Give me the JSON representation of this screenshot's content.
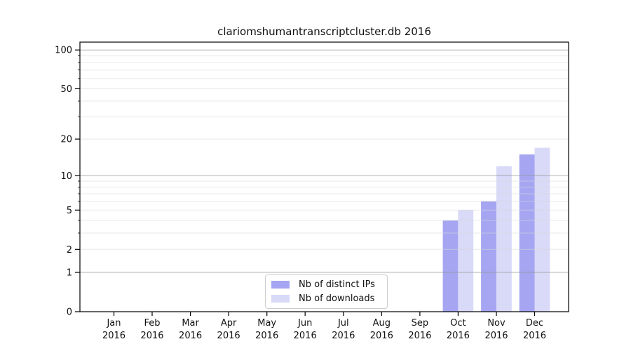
{
  "chart_data": {
    "type": "bar",
    "title": "clariomshumantranscriptcluster.db 2016",
    "categories": [
      "Jan",
      "Feb",
      "Mar",
      "Apr",
      "May",
      "Jun",
      "Jul",
      "Aug",
      "Sep",
      "Oct",
      "Nov",
      "Dec"
    ],
    "category_sublabel": "2016",
    "series": [
      {
        "name": "Nb of distinct IPs",
        "color": "#a5a5f2",
        "values": [
          0,
          0,
          0,
          0,
          0,
          0,
          0,
          0,
          0,
          4,
          6,
          15
        ]
      },
      {
        "name": "Nb of downloads",
        "color": "#d9d9f8",
        "values": [
          0,
          0,
          0,
          0,
          0,
          0,
          0,
          0,
          0,
          5,
          12,
          17
        ]
      }
    ],
    "xlabel": "",
    "ylabel": "",
    "yscale": "log1p",
    "ylim": [
      0,
      115
    ],
    "yticks_labeled": [
      0,
      1,
      2,
      5,
      10,
      20,
      50,
      100
    ],
    "yticks_major_grid": [
      1,
      10,
      100
    ],
    "yticks_minor_grid": [
      2,
      3,
      4,
      5,
      6,
      7,
      8,
      9,
      20,
      30,
      40,
      50,
      60,
      70,
      80,
      90
    ],
    "grid": "both",
    "legend_position": "lower center",
    "colors": {
      "axis": "#000000",
      "major_grid": "#9a9a9a",
      "minor_grid": "#d9d9d9",
      "text": "#111111",
      "legend_border": "#cccccc"
    }
  }
}
